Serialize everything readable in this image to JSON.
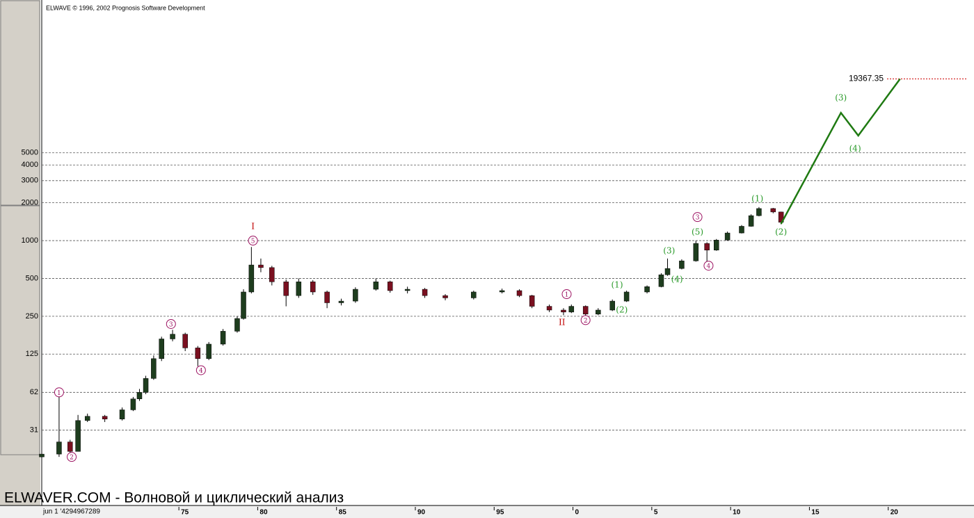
{
  "chart_data": {
    "type": "candlestick",
    "title": "ELWAVE © 1996, 2002 Prognosis Software Development",
    "watermark": "ELWAVER.COM - Волновой и циклический анализ",
    "x_start_label": "jun 1 '4294967289",
    "log_scale": true,
    "grid": true,
    "xlim": [
      1966.3,
      2025.0
    ],
    "ylim": [
      7.8,
      82200
    ],
    "yticks": [
      31,
      62,
      125,
      250,
      500,
      1000,
      2000,
      3000,
      4000,
      5000
    ],
    "xticks": [
      {
        "value": 1975,
        "label": "75"
      },
      {
        "value": 1980,
        "label": "80"
      },
      {
        "value": 1985,
        "label": "85"
      },
      {
        "value": 1990,
        "label": "90"
      },
      {
        "value": 1995,
        "label": "95"
      },
      {
        "value": 2000,
        "label": "0"
      },
      {
        "value": 2005,
        "label": "5"
      },
      {
        "value": 2010,
        "label": "10"
      },
      {
        "value": 2015,
        "label": "15"
      },
      {
        "value": 2020,
        "label": "20"
      }
    ],
    "up_color": "#1e3d1e",
    "down_color": "#7a1020",
    "candles": {
      "x": [
        1966.3,
        1967.4,
        1968.1,
        1968.6,
        1969.2,
        1970.3,
        1971.4,
        1972.1,
        1972.5,
        1972.9,
        1973.4,
        1973.9,
        1974.6,
        1975.4,
        1976.2,
        1976.9,
        1977.8,
        1978.7,
        1979.1,
        1979.6,
        1980.2,
        1980.9,
        1981.8,
        1982.6,
        1983.5,
        1984.4,
        1985.3,
        1986.2,
        1987.5,
        1988.4,
        1989.5,
        1990.6,
        1991.9,
        1993.7,
        1995.5,
        1996.6,
        1997.4,
        1998.5,
        1999.4,
        1999.9,
        2000.8,
        2001.6,
        2002.5,
        2003.4,
        2004.7,
        2005.6,
        2006.0,
        2006.9,
        2007.8,
        2008.5,
        2009.1,
        2009.8,
        2010.7,
        2011.3,
        2011.8,
        2012.7,
        2013.2
      ],
      "open": [
        19,
        20,
        25,
        21,
        37,
        40,
        38,
        45,
        55,
        62,
        80,
        115,
        165,
        180,
        140,
        115,
        150,
        190,
        240,
        390,
        640,
        610,
        470,
        365,
        470,
        390,
        320,
        330,
        410,
        470,
        400,
        410,
        365,
        350,
        390,
        400,
        365,
        300,
        280,
        270,
        300,
        260,
        280,
        330,
        390,
        430,
        535,
        600,
        690,
        950,
        840,
        1010,
        1150,
        1300,
        1580,
        1800,
        1690
      ],
      "high": [
        21,
        62,
        26,
        41,
        42,
        41,
        47,
        57,
        66,
        84,
        122,
        172,
        195,
        185,
        145,
        156,
        198,
        250,
        410,
        890,
        720,
        630,
        490,
        500,
        485,
        400,
        345,
        425,
        500,
        480,
        430,
        420,
        375,
        400,
        415,
        410,
        370,
        310,
        290,
        310,
        305,
        290,
        340,
        400,
        440,
        550,
        720,
        710,
        1000,
        970,
        1030,
        1180,
        1330,
        1620,
        1850,
        1820,
        1700
      ],
      "low": [
        18,
        19,
        20,
        21,
        36,
        36,
        37,
        44,
        53,
        60,
        78,
        110,
        158,
        132,
        100,
        112,
        146,
        185,
        235,
        380,
        560,
        440,
        300,
        350,
        370,
        290,
        305,
        320,
        400,
        385,
        380,
        350,
        335,
        340,
        380,
        355,
        290,
        270,
        255,
        265,
        250,
        255,
        275,
        325,
        380,
        425,
        525,
        590,
        680,
        630,
        830,
        1000,
        1140,
        1290,
        1560,
        1650,
        1350
      ],
      "close": [
        20,
        25,
        21,
        37,
        40,
        38,
        45,
        55,
        62,
        80,
        115,
        165,
        180,
        140,
        115,
        150,
        190,
        240,
        390,
        640,
        610,
        470,
        365,
        470,
        390,
        320,
        330,
        410,
        470,
        400,
        410,
        365,
        350,
        390,
        400,
        365,
        300,
        280,
        270,
        300,
        260,
        280,
        330,
        390,
        430,
        535,
        600,
        690,
        950,
        840,
        1010,
        1150,
        1300,
        1580,
        1800,
        1690,
        1400
      ]
    },
    "forecast": {
      "color": "#1f7a12",
      "x": [
        2013.2,
        2017.0,
        2018.1,
        2020.75
      ],
      "values": [
        1360,
        10400,
        6850,
        19367.35
      ]
    },
    "target": {
      "value": 19367.35,
      "color": "#cc0000"
    },
    "annotations": [
      {
        "label": "1",
        "x": 1967.4,
        "y": 62,
        "color": "#9b1060",
        "circled": true
      },
      {
        "label": "2",
        "x": 1968.2,
        "y": 19,
        "color": "#9b1060",
        "circled": true
      },
      {
        "label": "3",
        "x": 1974.5,
        "y": 217,
        "color": "#9b1060",
        "circled": true
      },
      {
        "label": "4",
        "x": 1976.4,
        "y": 93,
        "color": "#9b1060",
        "circled": true
      },
      {
        "label": "5",
        "x": 1979.7,
        "y": 1000,
        "color": "#9b1060",
        "circled": true
      },
      {
        "label": "I",
        "x": 1979.7,
        "y": 1310,
        "color": "#c00000",
        "circled": false
      },
      {
        "label": "1",
        "x": 1999.6,
        "y": 375,
        "color": "#9b1060",
        "circled": true
      },
      {
        "label": "II",
        "x": 1999.3,
        "y": 226,
        "color": "#c00000",
        "circled": false
      },
      {
        "label": "2",
        "x": 2000.8,
        "y": 233,
        "color": "#9b1060",
        "circled": true
      },
      {
        "label": "(1)",
        "x": 2002.8,
        "y": 448,
        "color": "#2a9a2a",
        "circled": false
      },
      {
        "label": "(2)",
        "x": 2003.1,
        "y": 283,
        "color": "#2a9a2a",
        "circled": false
      },
      {
        "label": "(3)",
        "x": 2006.1,
        "y": 836,
        "color": "#2a9a2a",
        "circled": false
      },
      {
        "label": "(4)",
        "x": 2006.6,
        "y": 496,
        "color": "#2a9a2a",
        "circled": false
      },
      {
        "label": "3",
        "x": 2007.9,
        "y": 1540,
        "color": "#9b1060",
        "circled": true
      },
      {
        "label": "(5)",
        "x": 2007.9,
        "y": 1180,
        "color": "#2a9a2a",
        "circled": false
      },
      {
        "label": "4",
        "x": 2008.6,
        "y": 632,
        "color": "#9b1060",
        "circled": true
      },
      {
        "label": "(1)",
        "x": 2011.7,
        "y": 2175,
        "color": "#2a9a2a",
        "circled": false
      },
      {
        "label": "(2)",
        "x": 2013.2,
        "y": 1180,
        "color": "#2a9a2a",
        "circled": false
      },
      {
        "label": "(3)",
        "x": 2017.0,
        "y": 13850,
        "color": "#2a9a2a",
        "circled": false
      },
      {
        "label": "(4)",
        "x": 2017.9,
        "y": 5460,
        "color": "#2a9a2a",
        "circled": false
      }
    ]
  }
}
